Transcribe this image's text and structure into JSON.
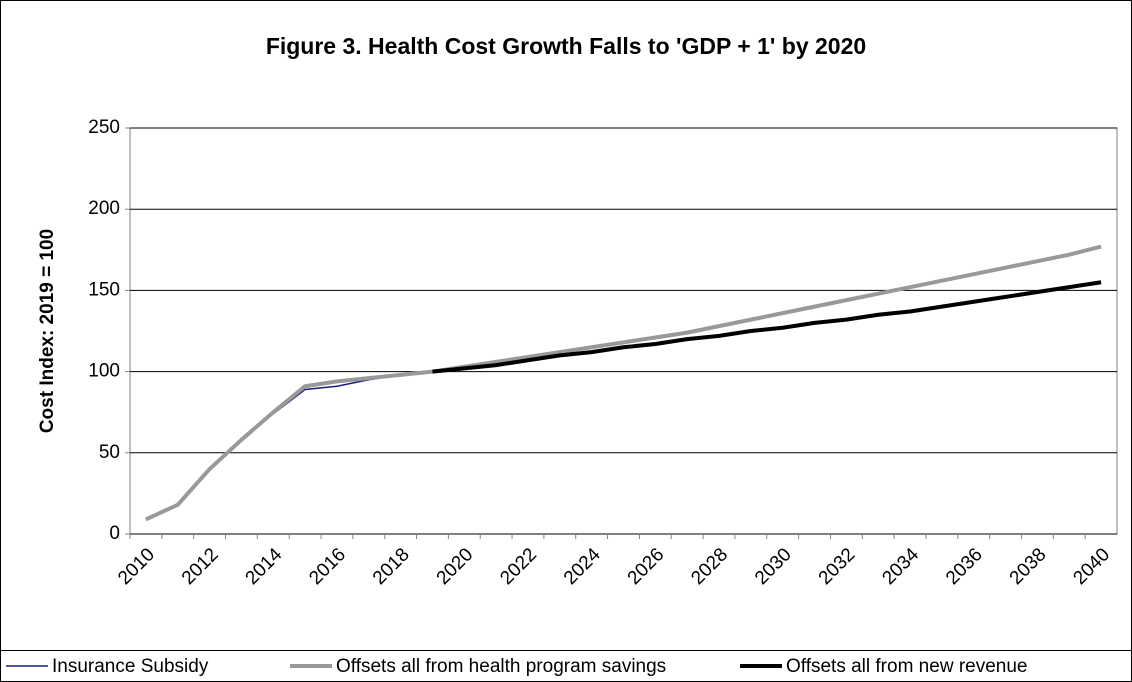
{
  "chart_data": {
    "type": "line",
    "title": "Figure 3.  Health Cost Growth Falls to 'GDP + 1' by 2020",
    "ylabel": "Cost Index:  2019 = 100",
    "categories": [
      "2010",
      null,
      "2012",
      null,
      "2014",
      null,
      "2016",
      null,
      "2018",
      null,
      "2020",
      null,
      "2022",
      null,
      "2024",
      null,
      "2026",
      null,
      "2028",
      null,
      "2030",
      null,
      "2032",
      null,
      "2034",
      null,
      "2036",
      null,
      "2038",
      null,
      "2040"
    ],
    "series": [
      {
        "name": "Insurance Subsidy",
        "color": "#1c1c80",
        "width": 1.5,
        "values": [
          9,
          18,
          40,
          58,
          74,
          89,
          91,
          95,
          98,
          100,
          null,
          null,
          null,
          null,
          null,
          null,
          null,
          null,
          null,
          null,
          null,
          null,
          null,
          null,
          null,
          null,
          null,
          null,
          null,
          null,
          null
        ]
      },
      {
        "name": "Offsets all from health program savings",
        "color": "#999999",
        "width": 4,
        "values": [
          9,
          18,
          40,
          58,
          75,
          91,
          94,
          96,
          98,
          100,
          103,
          106,
          109,
          112,
          115,
          118,
          121,
          124,
          128,
          132,
          136,
          140,
          144,
          148,
          152,
          156,
          160,
          164,
          168,
          172,
          177
        ]
      },
      {
        "name": "Offsets all from new revenue",
        "color": "#000000",
        "width": 4,
        "values": [
          null,
          null,
          null,
          null,
          null,
          null,
          null,
          null,
          null,
          100,
          102,
          104,
          107,
          110,
          112,
          115,
          117,
          120,
          122,
          125,
          127,
          130,
          132,
          135,
          137,
          140,
          143,
          146,
          149,
          152,
          155
        ]
      }
    ],
    "ylim": [
      0,
      250
    ],
    "yticks": [
      0,
      50,
      100,
      150,
      200,
      250
    ],
    "grid": true,
    "legend": "bottom"
  }
}
